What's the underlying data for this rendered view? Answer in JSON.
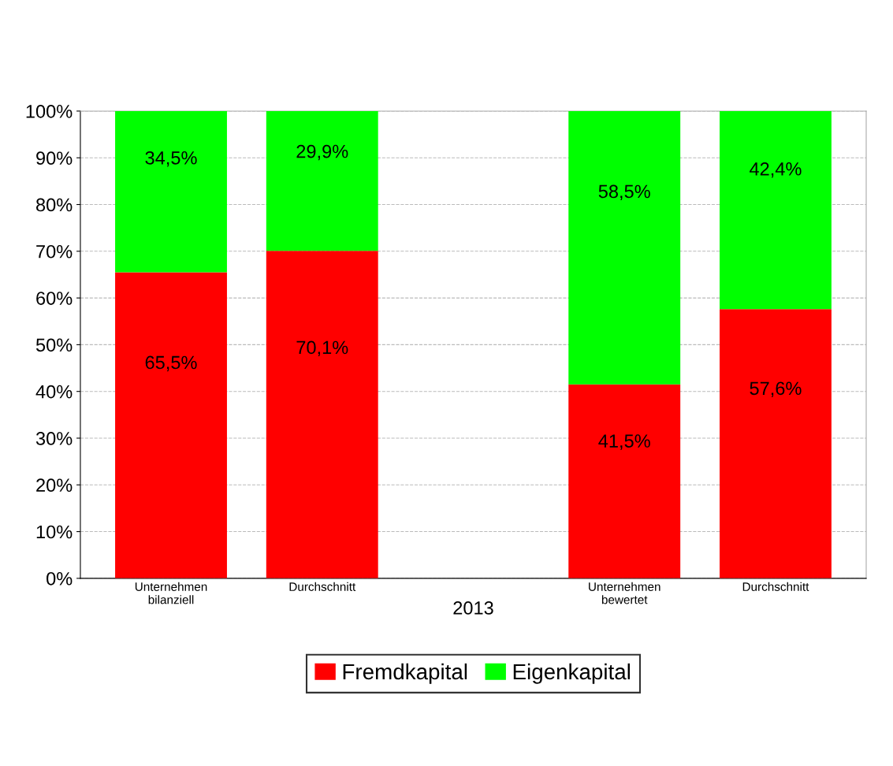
{
  "chart_data": {
    "type": "bar",
    "stacked": true,
    "xlabel": "2013",
    "categories": [
      "Unternehmen\nbilanziell",
      "Durchschnitt",
      null,
      "Unternehmen\nbewertet",
      "Durchschnitt"
    ],
    "series": [
      {
        "name": "Fremdkapital",
        "color": "#ff0000",
        "values": [
          65.5,
          70.1,
          null,
          41.5,
          57.6
        ],
        "value_labels": [
          "65,5%",
          "70,1%",
          null,
          "41,5%",
          "57,6%"
        ]
      },
      {
        "name": "Eigenkapital",
        "color": "#00ff00",
        "values": [
          34.5,
          29.9,
          null,
          58.5,
          42.4
        ],
        "value_labels": [
          "34,5%",
          "29,9%",
          null,
          "58,5%",
          "42,4%"
        ]
      }
    ],
    "ylim": [
      0,
      100
    ],
    "yticks": [
      {
        "value": 0,
        "label": "0%"
      },
      {
        "value": 10,
        "label": "10%"
      },
      {
        "value": 20,
        "label": "20%"
      },
      {
        "value": 30,
        "label": "30%"
      },
      {
        "value": 40,
        "label": "40%"
      },
      {
        "value": 50,
        "label": "50%"
      },
      {
        "value": 60,
        "label": "60%"
      },
      {
        "value": 70,
        "label": "70%"
      },
      {
        "value": 80,
        "label": "80%"
      },
      {
        "value": 90,
        "label": "90%"
      },
      {
        "value": 100,
        "label": "100%"
      }
    ],
    "grid": "y",
    "legend": "bottom"
  }
}
